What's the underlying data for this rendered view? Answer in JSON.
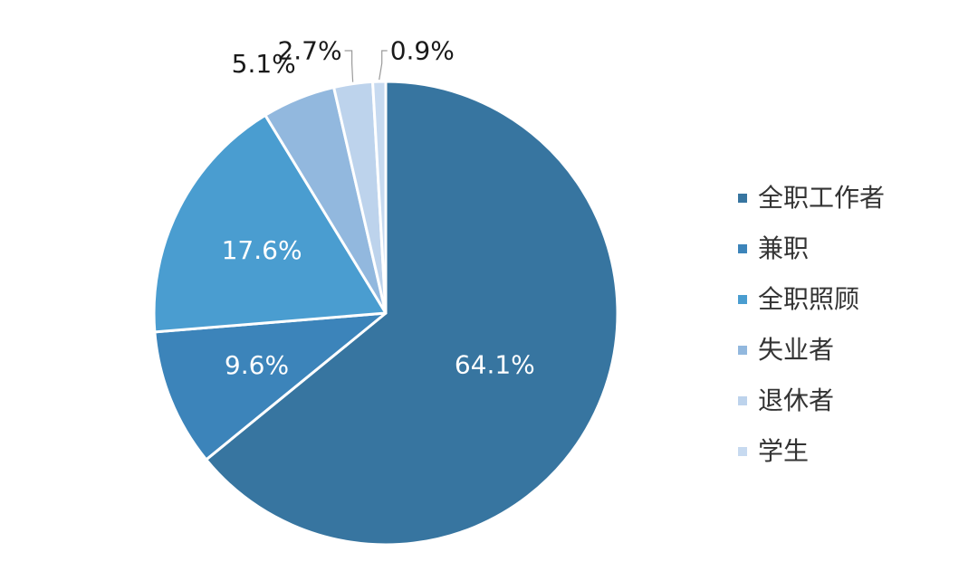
{
  "chart_data": {
    "type": "pie",
    "title": "",
    "slices": [
      {
        "label": "全职工作者",
        "value": 64.1,
        "display": "64.1%",
        "color": "#3775A0",
        "label_color": "#ffffff",
        "label_position": "inside"
      },
      {
        "label": "兼职",
        "value": 9.6,
        "display": "9.6%",
        "color": "#3C84BA",
        "label_color": "#ffffff",
        "label_position": "inside"
      },
      {
        "label": "全职照顾",
        "value": 17.6,
        "display": "17.6%",
        "color": "#4A9DD0",
        "label_color": "#ffffff",
        "label_position": "inside"
      },
      {
        "label": "失业者",
        "value": 5.1,
        "display": "5.1%",
        "color": "#92B8DE",
        "label_color": "#1a1a1a",
        "label_position": "outside"
      },
      {
        "label": "退休者",
        "value": 2.7,
        "display": "2.7%",
        "color": "#BDD3EC",
        "label_color": "#1a1a1a",
        "label_position": "outside-leader"
      },
      {
        "label": "学生",
        "value": 0.9,
        "display": "0.9%",
        "color": "#C7DAF0",
        "label_color": "#1a1a1a",
        "label_position": "outside-leader"
      }
    ],
    "legend_position": "right",
    "start_angle": "12 o'clock",
    "direction": "clockwise"
  }
}
